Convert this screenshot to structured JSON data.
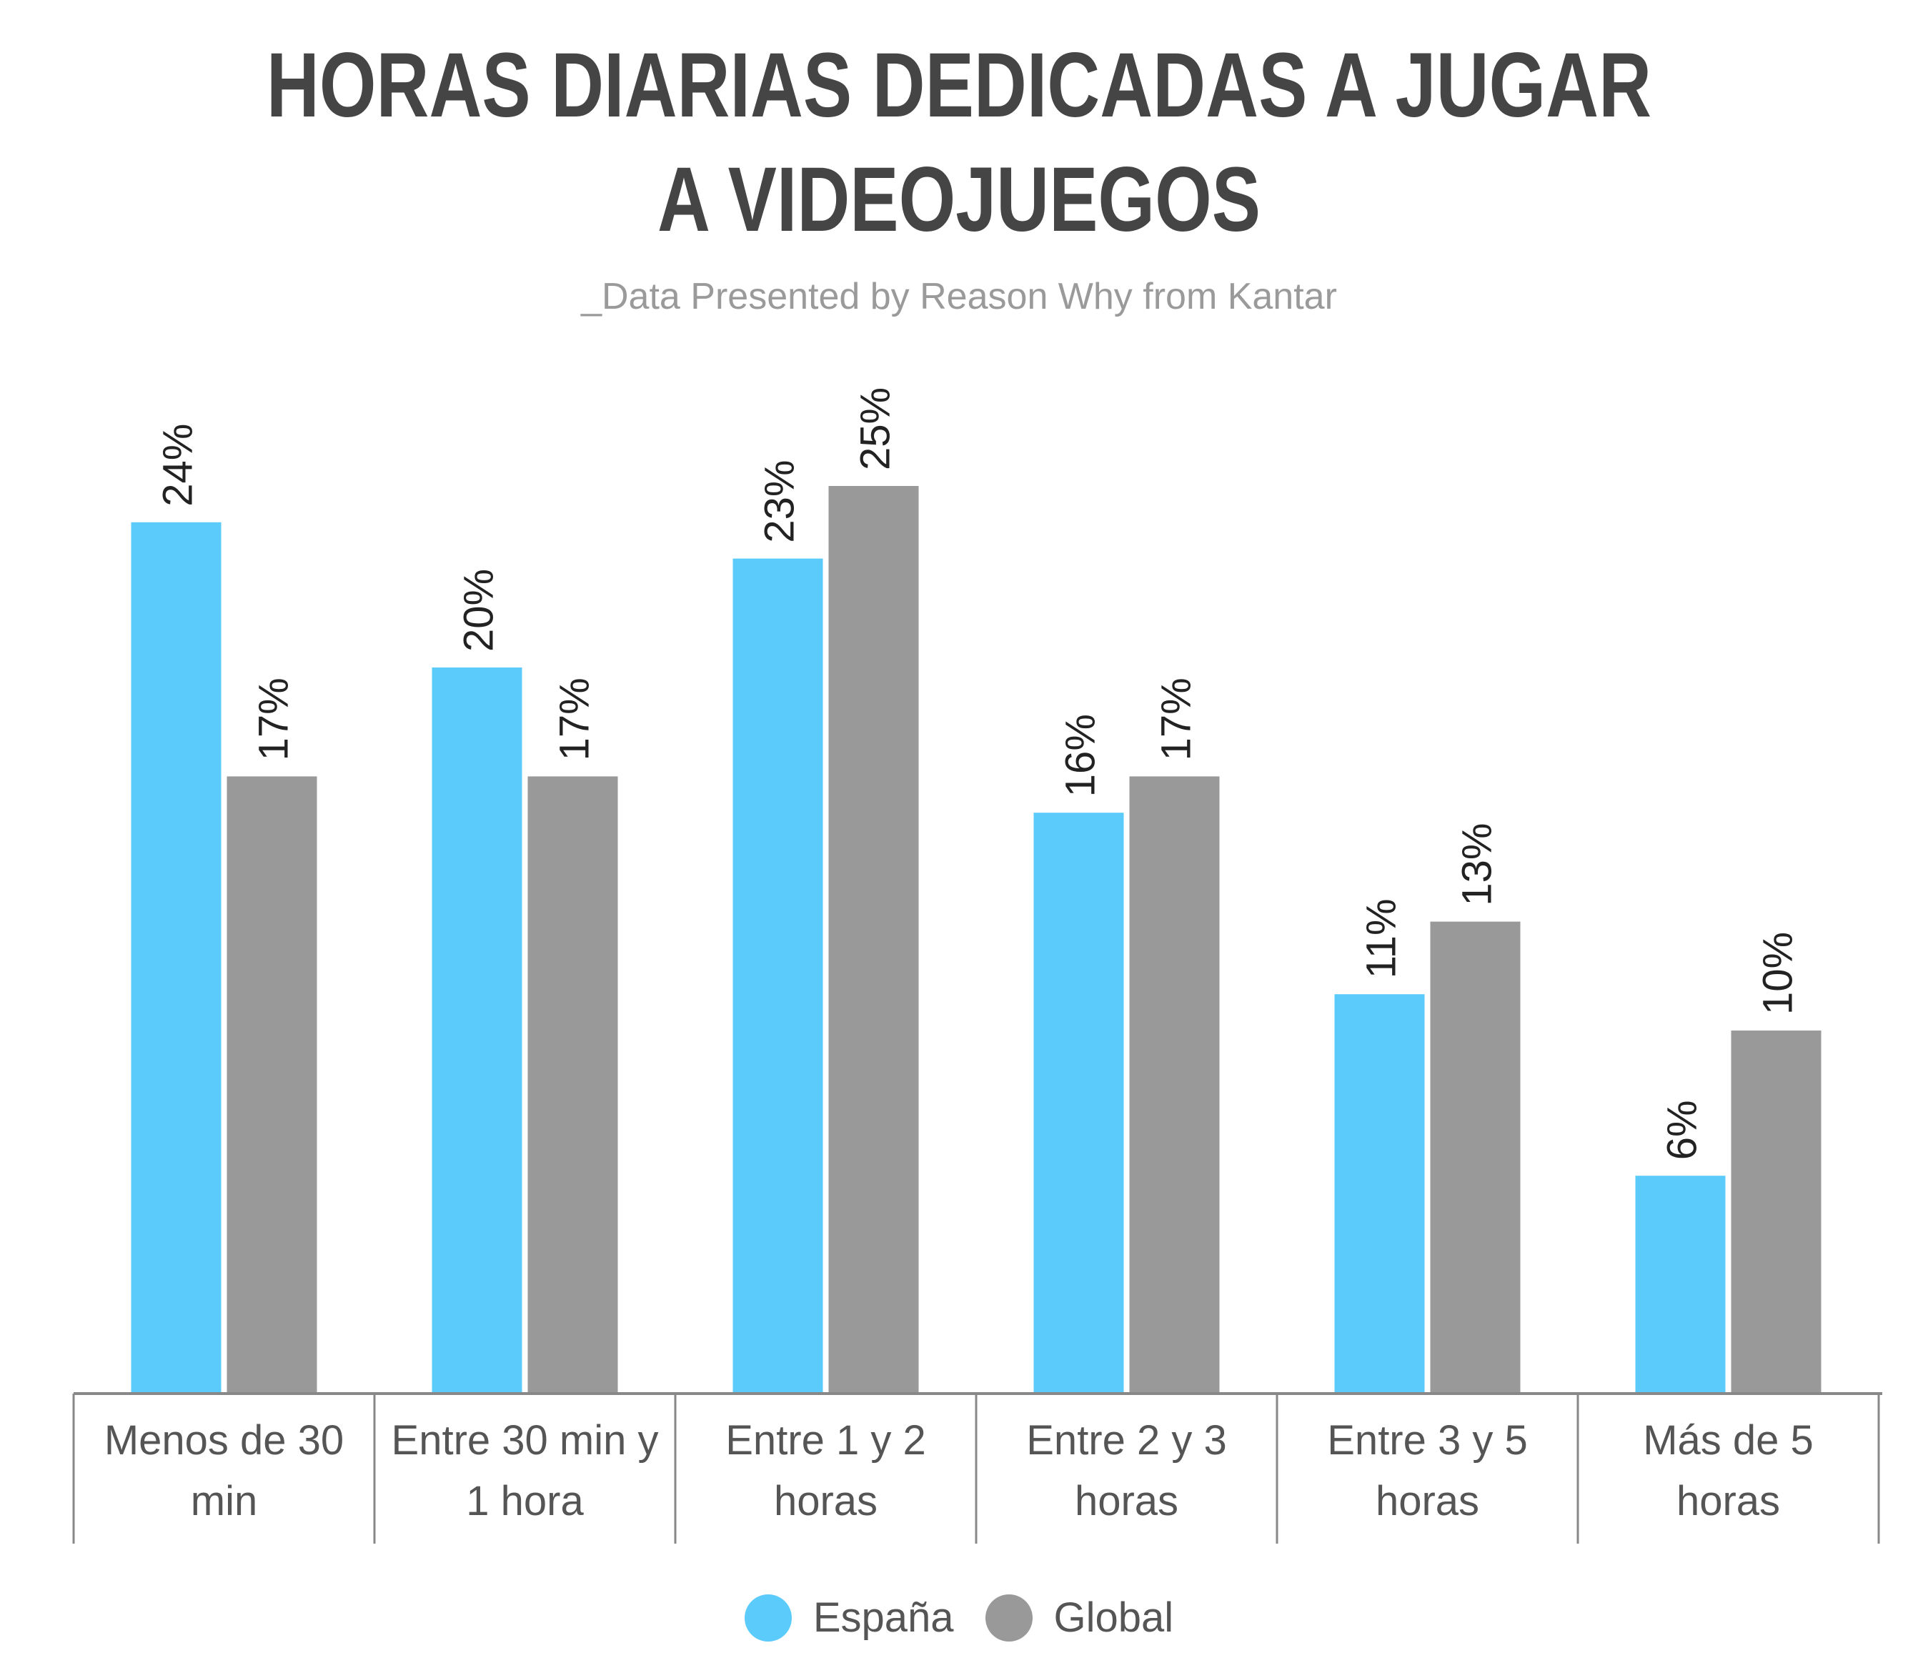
{
  "header": {
    "title_line_1": "HORAS DIARIAS DEDICADAS A JUGAR",
    "title_line_2": "A VIDEOJUEGOS",
    "subtitle": "_Data Presented by Reason Why from Kantar"
  },
  "colors": {
    "espana": "#5bcbfb",
    "global": "#999999",
    "axis": "#888888",
    "label_text": "#222222",
    "category_text": "#555555"
  },
  "chart_data": {
    "type": "bar",
    "title": "HORAS DIARIAS DEDICADAS A JUGAR A VIDEOJUEGOS",
    "subtitle": "_Data Presented by Reason Why from Kantar",
    "categories": [
      [
        "Menos de 30",
        "min"
      ],
      [
        "Entre 30 min y",
        "1 hora"
      ],
      [
        "Entre 1 y 2",
        "horas"
      ],
      [
        "Entre 2 y 3",
        "horas"
      ],
      [
        "Entre 3 y 5",
        "horas"
      ],
      [
        "Más de 5",
        "horas"
      ]
    ],
    "series": [
      {
        "name": "España",
        "values": [
          24,
          20,
          23,
          16,
          11,
          6
        ],
        "labels": [
          "24%",
          "20%",
          "23%",
          "16%",
          "11%",
          "6%"
        ]
      },
      {
        "name": "Global",
        "values": [
          17,
          17,
          25,
          17,
          13,
          10
        ],
        "labels": [
          "17%",
          "17%",
          "25%",
          "17%",
          "13%",
          "10%"
        ]
      }
    ],
    "unit": "%",
    "ylim": [
      0,
      25
    ],
    "grid": false,
    "legend_position": "bottom-center",
    "data_labels": "rotated-vertical"
  },
  "legend": {
    "items": [
      {
        "label": "España",
        "color": "#5bcbfb"
      },
      {
        "label": "Global",
        "color": "#999999"
      }
    ]
  }
}
